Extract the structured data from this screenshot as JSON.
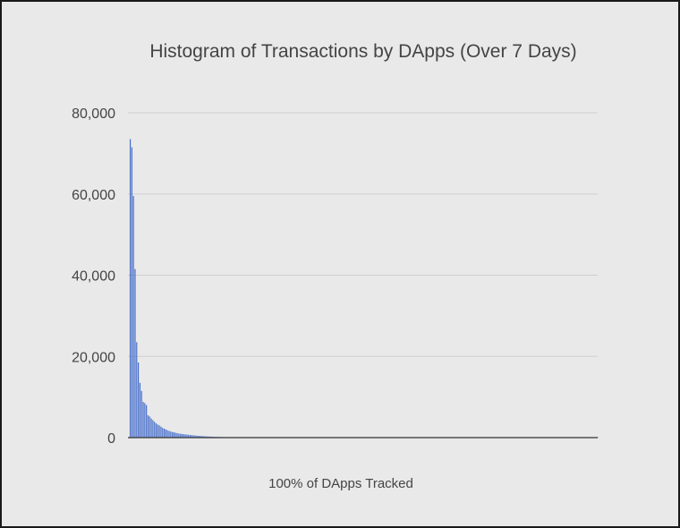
{
  "chart_data": {
    "type": "bar",
    "title": "Histogram of Transactions by DApps (Over 7 Days)",
    "xlabel": "100% of DApps Tracked",
    "ylabel": "",
    "ylim": [
      0,
      80000
    ],
    "yticks": [
      "0",
      "20,000",
      "40,000",
      "60,000",
      "80,000"
    ],
    "ytick_values": [
      0,
      20000,
      40000,
      60000,
      80000
    ],
    "grid": true,
    "bar_color": "#3b66c9",
    "series": [
      {
        "values": [
          73500,
          71500,
          59500,
          41500,
          23500,
          18500,
          13500,
          11500,
          8800,
          8500,
          8000,
          5500,
          5200,
          4700,
          4300,
          3900,
          3500,
          3200,
          3000,
          2700,
          2400,
          2200,
          2000,
          1800,
          1650,
          1500,
          1400,
          1300,
          1200,
          1100,
          1000,
          950,
          900,
          850,
          800,
          750,
          700,
          650,
          600,
          560,
          520,
          480,
          450,
          420,
          390,
          360,
          330,
          300,
          280,
          260,
          240,
          220,
          200,
          185,
          170,
          155,
          140,
          130,
          120,
          110,
          100,
          92,
          85,
          78,
          72,
          66,
          60,
          55,
          50,
          46,
          42,
          38,
          35,
          32,
          29,
          27,
          25,
          23,
          21,
          19,
          17,
          16,
          15,
          14,
          13,
          12,
          11,
          10,
          9,
          8,
          7,
          7,
          6,
          6,
          5,
          5,
          5,
          4,
          4,
          4,
          3,
          3,
          3,
          3,
          2,
          2,
          2,
          2,
          2,
          2,
          1,
          1,
          1,
          1,
          1,
          1,
          1,
          1,
          1,
          1,
          1,
          1,
          1,
          1,
          1,
          1,
          1,
          1,
          1,
          1,
          1,
          1,
          1,
          1,
          1,
          1,
          1,
          1,
          1,
          1,
          1,
          1,
          1,
          1,
          1,
          1,
          1,
          1,
          1,
          1,
          1,
          1,
          1,
          1,
          1,
          1,
          1,
          1,
          1,
          1,
          1,
          1,
          1,
          1,
          1,
          1,
          1,
          1,
          1,
          1,
          1,
          1,
          1,
          1,
          1,
          1,
          1,
          1,
          1,
          1,
          1,
          1,
          1,
          1,
          1,
          1,
          1,
          1,
          1,
          1,
          1,
          1,
          1,
          1,
          1,
          1,
          1,
          1,
          1,
          1,
          1,
          1,
          1,
          1,
          1,
          1,
          1,
          1,
          1,
          1,
          1,
          1,
          1,
          1,
          1,
          1,
          1,
          1,
          1,
          1,
          1,
          1,
          1,
          1,
          1,
          1,
          1,
          1,
          1,
          1,
          1,
          1,
          1,
          1,
          1,
          1,
          1,
          1,
          1,
          1,
          1,
          1,
          1,
          1,
          1,
          1,
          1,
          1,
          1,
          1,
          1,
          1,
          1,
          1,
          1,
          1,
          1,
          1,
          1,
          1,
          1,
          1,
          1,
          1,
          1,
          1,
          1,
          1,
          1,
          1,
          1,
          1,
          1,
          1,
          1,
          1,
          1,
          1,
          1,
          1,
          1,
          1,
          1,
          1,
          1,
          1,
          1,
          1,
          1,
          1
        ]
      }
    ]
  }
}
